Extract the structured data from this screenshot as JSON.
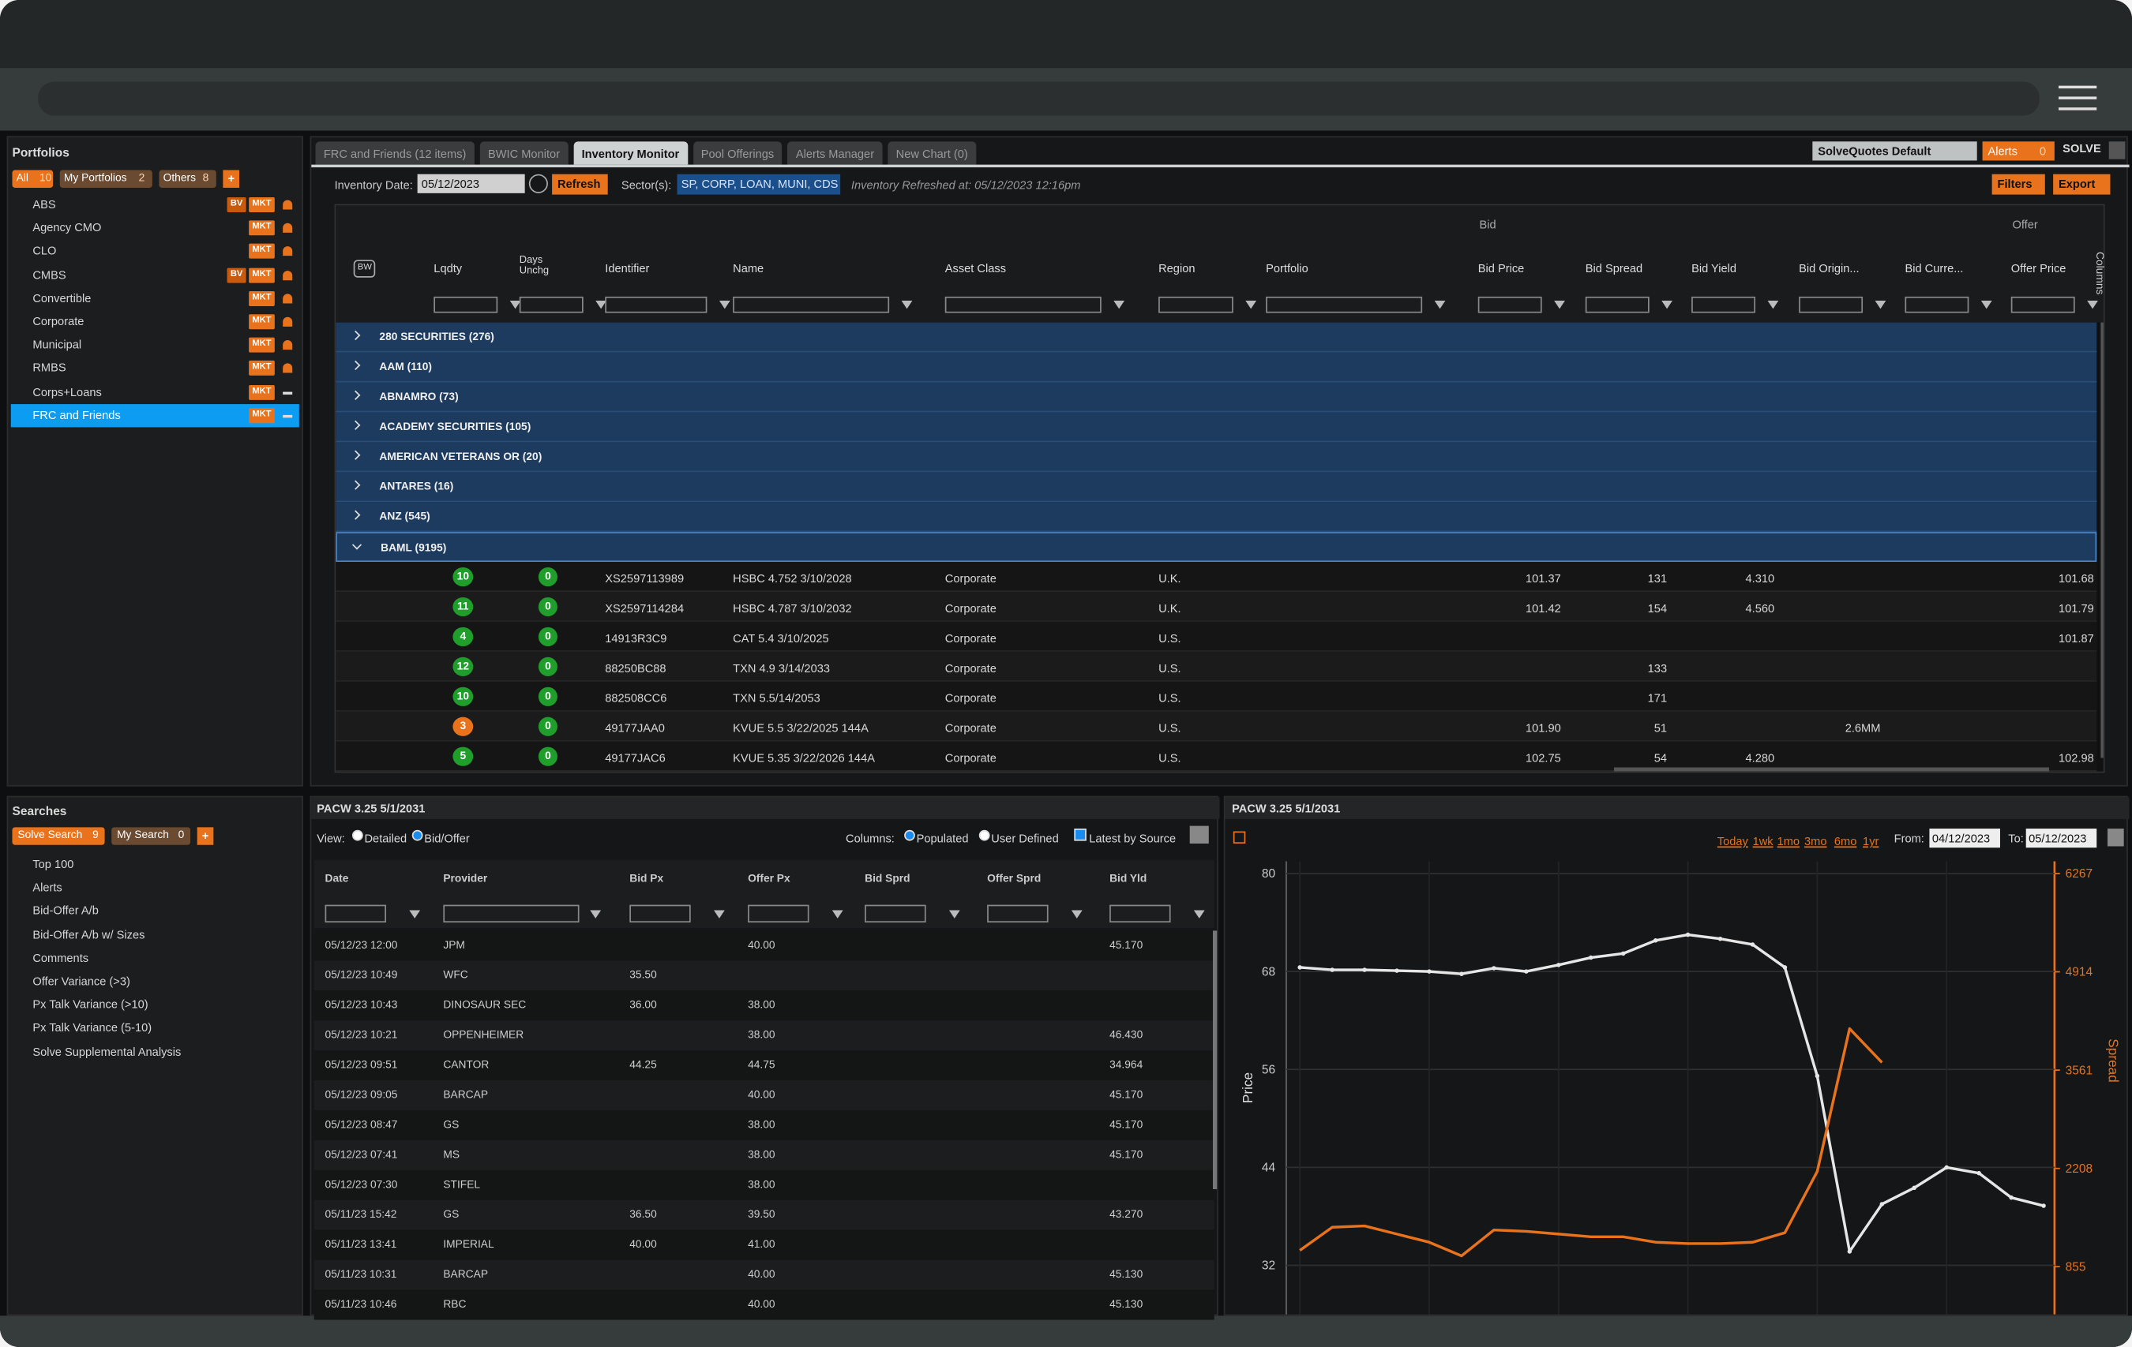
{
  "portfolios": {
    "title": "Portfolios",
    "filters": [
      {
        "label": "All",
        "count": "10"
      },
      {
        "label": "My Portfolios",
        "count": "2"
      },
      {
        "label": "Others",
        "count": "8"
      }
    ],
    "items": [
      {
        "name": "ABS",
        "badges": [
          "BV",
          "MKT"
        ]
      },
      {
        "name": "Agency CMO",
        "badges": [
          "MKT"
        ]
      },
      {
        "name": "CLO",
        "badges": [
          "MKT"
        ]
      },
      {
        "name": "CMBS",
        "badges": [
          "BV",
          "MKT"
        ]
      },
      {
        "name": "Convertible",
        "badges": [
          "MKT"
        ]
      },
      {
        "name": "Corporate",
        "badges": [
          "MKT"
        ]
      },
      {
        "name": "Municipal",
        "badges": [
          "MKT"
        ]
      },
      {
        "name": "RMBS",
        "badges": [
          "MKT"
        ]
      },
      {
        "name": "Corps+Loans",
        "badges": [
          "MKT"
        ]
      },
      {
        "name": "FRC and Friends",
        "badges": [
          "MKT"
        ]
      }
    ],
    "selected": 9
  },
  "tabs": {
    "items": [
      "FRC and Friends (12 items)",
      "BWIC Monitor",
      "Inventory Monitor",
      "Pool Offerings",
      "Alerts Manager",
      "New Chart (0)"
    ],
    "active": 2
  },
  "top_right": {
    "preset": "SolveQuotes Default",
    "alerts": "Alerts",
    "alerts_count": "0",
    "brand": "SOLVE"
  },
  "toolbar": {
    "date_label": "Inventory Date:",
    "date": "05/12/2023",
    "refresh": "Refresh",
    "sector_label": "Sector(s):",
    "sectors": "SP, CORP, LOAN, MUNI, CDS",
    "refreshed": "Inventory Refreshed at: 05/12/2023 12:16pm",
    "filters": "Filters",
    "export": "Export"
  },
  "grid": {
    "group_bid": "Bid",
    "group_offer": "Offer",
    "side_label": "Columns",
    "columns": [
      "BW",
      "Lqdty",
      "Days Unchg",
      "Identifier",
      "Name",
      "Asset Class",
      "Region",
      "Portfolio",
      "Bid Price",
      "Bid Spread",
      "Bid Yield",
      "Bid Origin...",
      "Bid Curre...",
      "Offer Price"
    ],
    "groups": [
      "280 SECURITIES (276)",
      "AAM (110)",
      "ABNAMRO (73)",
      "ACADEMY SECURITIES (105)",
      "AMERICAN VETERANS OR (20)",
      "ANTARES (16)",
      "ANZ (545)",
      "BAML (9195)"
    ],
    "expanded": 7,
    "rows": [
      {
        "lqdty_color": "#1f9e2c",
        "cells": [
          null,
          "10",
          "0",
          "XS2597113989",
          "HSBC 4.752 3/10/2028",
          "Corporate",
          "U.K.",
          null,
          "101.37",
          "131",
          "4.310",
          null,
          null,
          "101.68"
        ]
      },
      {
        "lqdty_color": "#1f9e2c",
        "cells": [
          null,
          "11",
          "0",
          "XS2597114284",
          "HSBC 4.787 3/10/2032",
          "Corporate",
          "U.K.",
          null,
          "101.42",
          "154",
          "4.560",
          null,
          null,
          "101.79"
        ]
      },
      {
        "lqdty_color": "#1f9e2c",
        "cells": [
          null,
          "4",
          "0",
          "14913R3C9",
          "CAT 5.4 3/10/2025",
          "Corporate",
          "U.S.",
          null,
          null,
          null,
          null,
          null,
          null,
          "101.87"
        ]
      },
      {
        "lqdty_color": "#1f9e2c",
        "cells": [
          null,
          "12",
          "0",
          "88250BC88",
          "TXN 4.9 3/14/2033",
          "Corporate",
          "U.S.",
          null,
          null,
          "133",
          null,
          null,
          null,
          null
        ]
      },
      {
        "lqdty_color": "#1f9e2c",
        "cells": [
          null,
          "10",
          "0",
          "882508CC6",
          "TXN 5.5/14/2053",
          "Corporate",
          "U.S.",
          null,
          null,
          "171",
          null,
          null,
          null,
          null
        ]
      },
      {
        "lqdty_color": "#e8731c",
        "cells": [
          null,
          "3",
          "0",
          "49177JAA0",
          "KVUE 5.5 3/22/2025 144A",
          "Corporate",
          "U.S.",
          null,
          "101.90",
          "51",
          null,
          "2.6MM",
          null,
          null
        ]
      },
      {
        "lqdty_color": "#1f9e2c",
        "cells": [
          null,
          "5",
          "0",
          "49177JAC6",
          "KVUE 5.35 3/22/2026 144A",
          "Corporate",
          "U.S.",
          null,
          "102.75",
          "54",
          "4.280",
          null,
          null,
          "102.98"
        ]
      }
    ]
  },
  "searches": {
    "title": "Searches",
    "tabs": [
      {
        "label": "Solve Search",
        "count": "9"
      },
      {
        "label": "My Search",
        "count": "0"
      }
    ],
    "items": [
      "Top 100",
      "Alerts",
      "Bid-Offer A/b",
      "Bid-Offer A/b w/ Sizes",
      "Comments",
      "Offer Variance (>3)",
      "Px Talk Variance (>10)",
      "Px Talk Variance (5-10)",
      "Solve Supplemental Analysis"
    ]
  },
  "quotes": {
    "title": "PACW 3.25 5/1/2031",
    "view_label": "View:",
    "view_options": [
      "Detailed",
      "Bid/Offer"
    ],
    "columns_label": "Columns:",
    "column_options": [
      "Populated",
      "User Defined"
    ],
    "latest": "Latest by Source",
    "headers": [
      "Date",
      "Provider",
      "Bid Px",
      "Offer Px",
      "Bid Sprd",
      "Offer Sprd",
      "Bid Yld"
    ],
    "rows": [
      [
        "05/12/23 12:00",
        "JPM",
        null,
        "40.00",
        null,
        null,
        "45.170"
      ],
      [
        "05/12/23 10:49",
        "WFC",
        "35.50",
        null,
        null,
        null,
        null
      ],
      [
        "05/12/23 10:43",
        "DINOSAUR SEC",
        "36.00",
        "38.00",
        null,
        null,
        null
      ],
      [
        "05/12/23 10:21",
        "OPPENHEIMER",
        null,
        "38.00",
        null,
        null,
        "46.430"
      ],
      [
        "05/12/23 09:51",
        "CANTOR",
        "44.25",
        "44.75",
        null,
        null,
        "34.964"
      ],
      [
        "05/12/23 09:05",
        "BARCAP",
        null,
        "40.00",
        null,
        null,
        "45.170"
      ],
      [
        "05/12/23 08:47",
        "GS",
        null,
        "38.00",
        null,
        null,
        "45.170"
      ],
      [
        "05/12/23 07:41",
        "MS",
        null,
        "38.00",
        null,
        null,
        "45.170"
      ],
      [
        "05/12/23 07:30",
        "STIFEL",
        null,
        "38.00",
        null,
        null,
        null
      ],
      [
        "05/11/23 15:42",
        "GS",
        "36.50",
        "39.50",
        null,
        null,
        "43.270"
      ],
      [
        "05/11/23 13:41",
        "IMPERIAL",
        "40.00",
        "41.00",
        null,
        null,
        null
      ],
      [
        "05/11/23 10:31",
        "BARCAP",
        null,
        "40.00",
        null,
        null,
        "45.130"
      ],
      [
        "05/11/23 10:46",
        "RBC",
        null,
        "40.00",
        null,
        null,
        "45.130"
      ]
    ]
  },
  "chart_panel": {
    "title": "PACW 3.25 5/1/2031",
    "ranges": [
      "Today",
      "1wk",
      "1mo",
      "3mo",
      "6mo",
      "1yr"
    ],
    "from_label": "From:",
    "from": "04/12/2023",
    "to_label": "To:",
    "to": "05/12/2023"
  },
  "chart_data": {
    "type": "line",
    "y_label": "Price",
    "y2_label": "Spread",
    "categories": [
      null,
      null,
      null,
      null,
      null,
      null,
      null,
      null,
      null,
      null,
      null,
      null,
      null,
      null,
      null,
      null,
      null,
      null,
      null,
      null,
      null,
      null,
      null,
      null
    ],
    "ylim": [
      26,
      81.5
    ],
    "yticks": [
      32,
      44,
      56,
      68,
      80
    ],
    "y2lim": [
      199,
      6436
    ],
    "y2ticks": [
      855,
      2208,
      3561,
      4914,
      6267
    ],
    "grid": true,
    "series": [
      {
        "name": "Price",
        "color": "#e6e6e6",
        "values": [
          68.5,
          68.2,
          68.2,
          68.1,
          68.0,
          67.7,
          68.4,
          68.0,
          68.8,
          69.7,
          70.2,
          71.8,
          72.5,
          72.0,
          71.3,
          68.5,
          55.2,
          33.7,
          39.5,
          41.5,
          44.0,
          43.3,
          40.3,
          39.3
        ]
      },
      {
        "name": "Spread",
        "color": "#e8731c",
        "axis": "y2",
        "values": [
          1080,
          1398,
          1417,
          1304,
          1192,
          1005,
          1361,
          1342,
          1304,
          1267,
          1267,
          1192,
          1173,
          1173,
          1192,
          1323,
          2166,
          4133,
          3665,
          null,
          null,
          null,
          null,
          null
        ]
      }
    ]
  }
}
